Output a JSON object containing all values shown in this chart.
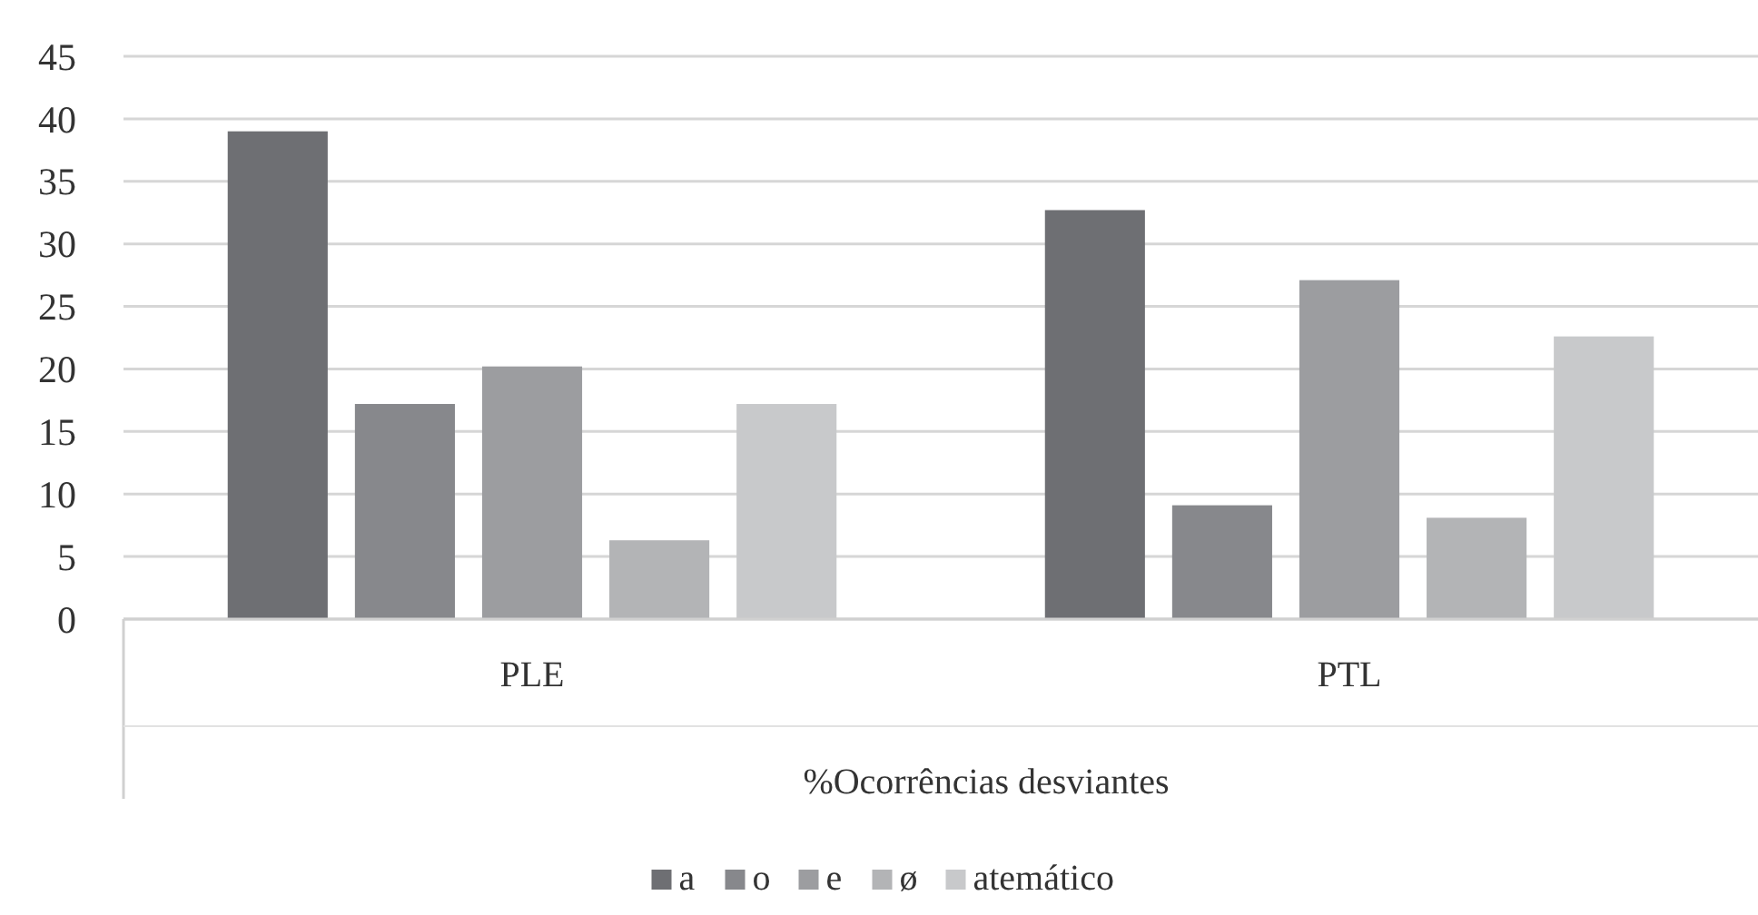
{
  "chart_data": {
    "type": "bar",
    "xlabel": "%Ocorrências desviantes",
    "categories": [
      "PLE",
      "PTL"
    ],
    "series": [
      {
        "name": "a",
        "color": "#6e6f73",
        "values": [
          39,
          32.7
        ]
      },
      {
        "name": "o",
        "color": "#87888c",
        "values": [
          17.2,
          9.1
        ]
      },
      {
        "name": "e",
        "color": "#9c9da0",
        "values": [
          20.2,
          27.1
        ]
      },
      {
        "name": "ø",
        "color": "#b3b4b6",
        "values": [
          6.3,
          8.1
        ]
      },
      {
        "name": "atemático",
        "color": "#c8c9cb",
        "values": [
          17.2,
          22.6
        ]
      }
    ],
    "ylim": [
      0,
      45
    ],
    "yticks": [
      0,
      5,
      10,
      15,
      20,
      25,
      30,
      35,
      40,
      45
    ],
    "grid": "y",
    "legend": "bottom"
  }
}
